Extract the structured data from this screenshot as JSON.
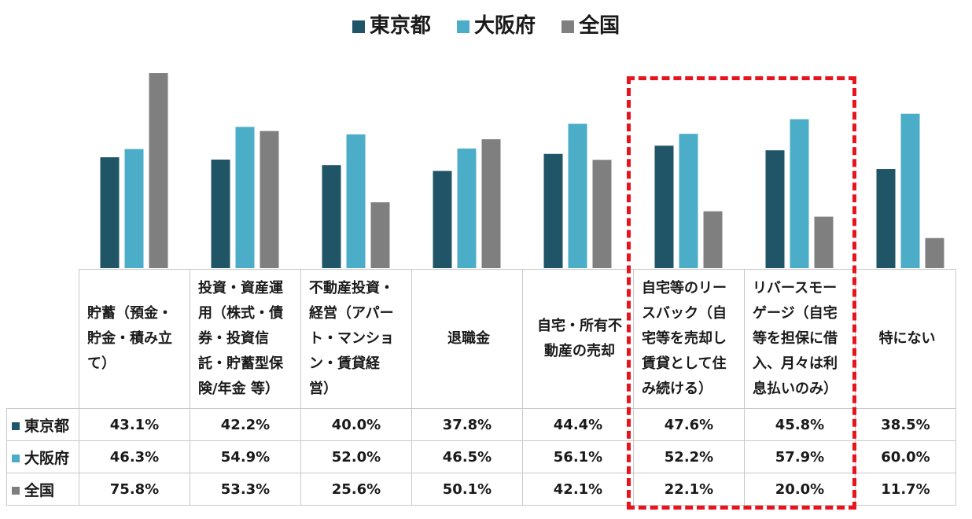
{
  "colors": {
    "tokyo": "#1f5566",
    "osaka": "#4badc8",
    "national": "#7f7f7f"
  },
  "chart_data": {
    "type": "bar",
    "ylim": [
      0,
      80
    ],
    "categories": [
      "貯蓄（預金・貯金・積み立て）",
      "投資・資産運用（株式・債券・投資信託・貯蓄型保険/年金 等）",
      "不動産投資・経営（アパート・マンション・賃貸経営）",
      "退職金",
      "自宅・所有不動産の売却",
      "自宅等のリースバック（自宅等を売却し賃貸として住み続ける）",
      "リバースモーゲージ（自宅等を担保に借入、月々は利息払いのみ）",
      "特にない"
    ],
    "category_lines": [
      [
        "貯蓄（預金・",
        "貯金・積み立",
        "て）"
      ],
      [
        "投資・資産運",
        "用（株式・債",
        "券・投資信",
        "託・貯蓄型保",
        "険/年金 等）"
      ],
      [
        "不動産投資・",
        "経営（アパー",
        "ト・マンショ",
        "ン・賃貸経",
        "営）"
      ],
      [
        "退職金"
      ],
      [
        "自宅・所有不",
        "動産の売却"
      ],
      [
        "自宅等のリー",
        "スバック（自",
        "宅等を売却し",
        "賃貸として住",
        "み続ける）"
      ],
      [
        "リバースモー",
        "ゲージ（自宅",
        "等を担保に借",
        "入、月々は利",
        "息払いのみ）"
      ],
      [
        "特にない"
      ]
    ],
    "series": [
      {
        "name": "東京都",
        "values": [
          43.1,
          42.2,
          40.0,
          37.8,
          44.4,
          47.6,
          45.8,
          38.5
        ],
        "labels": [
          "43.1%",
          "42.2%",
          "40.0%",
          "37.8%",
          "44.4%",
          "47.6%",
          "45.8%",
          "38.5%"
        ]
      },
      {
        "name": "大阪府",
        "values": [
          46.3,
          54.9,
          52.0,
          46.5,
          56.1,
          52.2,
          57.9,
          60.0
        ],
        "labels": [
          "46.3%",
          "54.9%",
          "52.0%",
          "46.5%",
          "56.1%",
          "52.2%",
          "57.9%",
          "60.0%"
        ]
      },
      {
        "name": "全国",
        "values": [
          75.8,
          53.3,
          25.6,
          50.1,
          42.1,
          22.1,
          20.0,
          11.7
        ],
        "labels": [
          "75.8%",
          "53.3%",
          "25.6%",
          "50.1%",
          "42.1%",
          "22.1%",
          "20.0%",
          "11.7%"
        ]
      }
    ],
    "legend_position": "top-center",
    "highlight": {
      "categories": [
        5,
        6
      ],
      "style": "red-dashed-box"
    }
  }
}
